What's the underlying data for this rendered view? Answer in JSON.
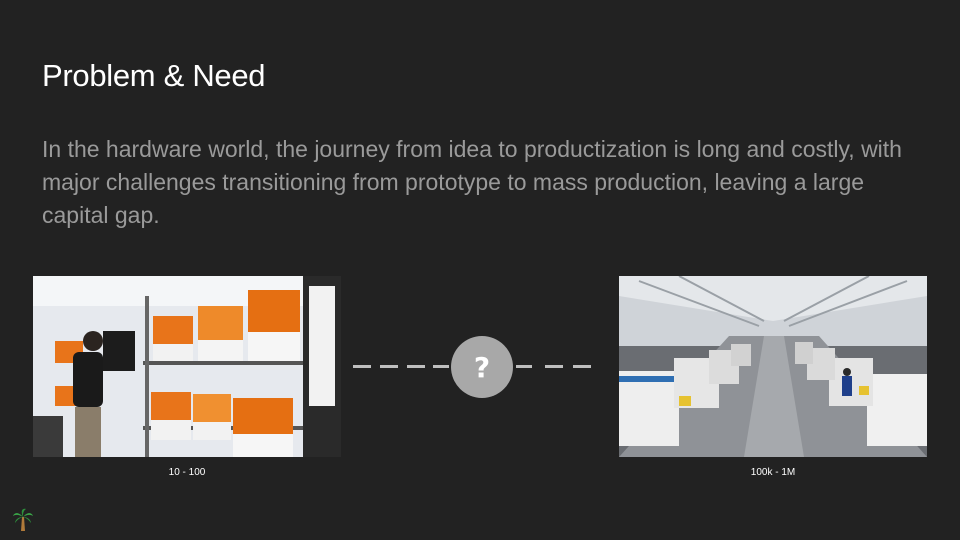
{
  "slide": {
    "title": "Problem & Need",
    "body": "In the hardware world, the journey from idea to productization is long and costly, with major challenges transitioning from prototype to mass production, leaving a large capital gap."
  },
  "left_image": {
    "caption": "10 - 100",
    "accent": "#e8741a"
  },
  "connector": {
    "symbol": "?",
    "icon": "question-mark-icon"
  },
  "right_image": {
    "caption": "100k - 1M"
  },
  "logo": {
    "icon": "palm-tree-icon"
  }
}
